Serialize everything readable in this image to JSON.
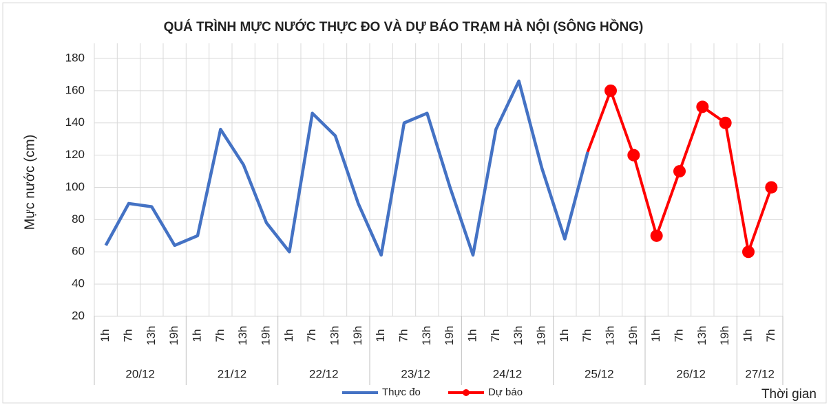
{
  "chart_data": {
    "type": "line",
    "title": "QUÁ TRÌNH MỰC NƯỚC THỰC ĐO VÀ DỰ BÁO TRẠM HÀ NỘI (SÔNG HỒNG)",
    "y_label": "Mực nước (cm)",
    "x_label": "Thời gian",
    "category_groups": [
      {
        "label": "20/12",
        "categories": [
          "1h",
          "7h",
          "13h",
          "19h"
        ]
      },
      {
        "label": "21/12",
        "categories": [
          "1h",
          "7h",
          "13h",
          "19h"
        ]
      },
      {
        "label": "22/12",
        "categories": [
          "1h",
          "7h",
          "13h",
          "19h"
        ]
      },
      {
        "label": "23/12",
        "categories": [
          "1h",
          "7h",
          "13h",
          "19h"
        ]
      },
      {
        "label": "24/12",
        "categories": [
          "1h",
          "7h",
          "13h",
          "19h"
        ]
      },
      {
        "label": "25/12",
        "categories": [
          "1h",
          "7h",
          "13h",
          "19h"
        ]
      },
      {
        "label": "26/12",
        "categories": [
          "1h",
          "7h",
          "13h",
          "19h"
        ]
      },
      {
        "label": "27/12",
        "categories": [
          "1h",
          "7h"
        ]
      }
    ],
    "series": [
      {
        "name": "Thực đo",
        "color": "#4472c4",
        "markers": false,
        "values": [
          64,
          90,
          88,
          64,
          70,
          136,
          114,
          78,
          60,
          146,
          132,
          90,
          58,
          140,
          146,
          100,
          58,
          136,
          166,
          112,
          68,
          122,
          null,
          null,
          null,
          null,
          null,
          null,
          null,
          null
        ]
      },
      {
        "name": "Dự báo",
        "color": "#ff0000",
        "markers": true,
        "values": [
          null,
          null,
          null,
          null,
          null,
          null,
          null,
          null,
          null,
          null,
          null,
          null,
          null,
          null,
          null,
          null,
          null,
          null,
          null,
          null,
          null,
          122,
          160,
          120,
          70,
          110,
          150,
          140,
          60,
          100
        ]
      }
    ],
    "ylim": [
      20,
      180
    ],
    "yticks": [
      20,
      40,
      60,
      80,
      100,
      120,
      140,
      160,
      180
    ],
    "grid": true,
    "legend": "bottom"
  }
}
